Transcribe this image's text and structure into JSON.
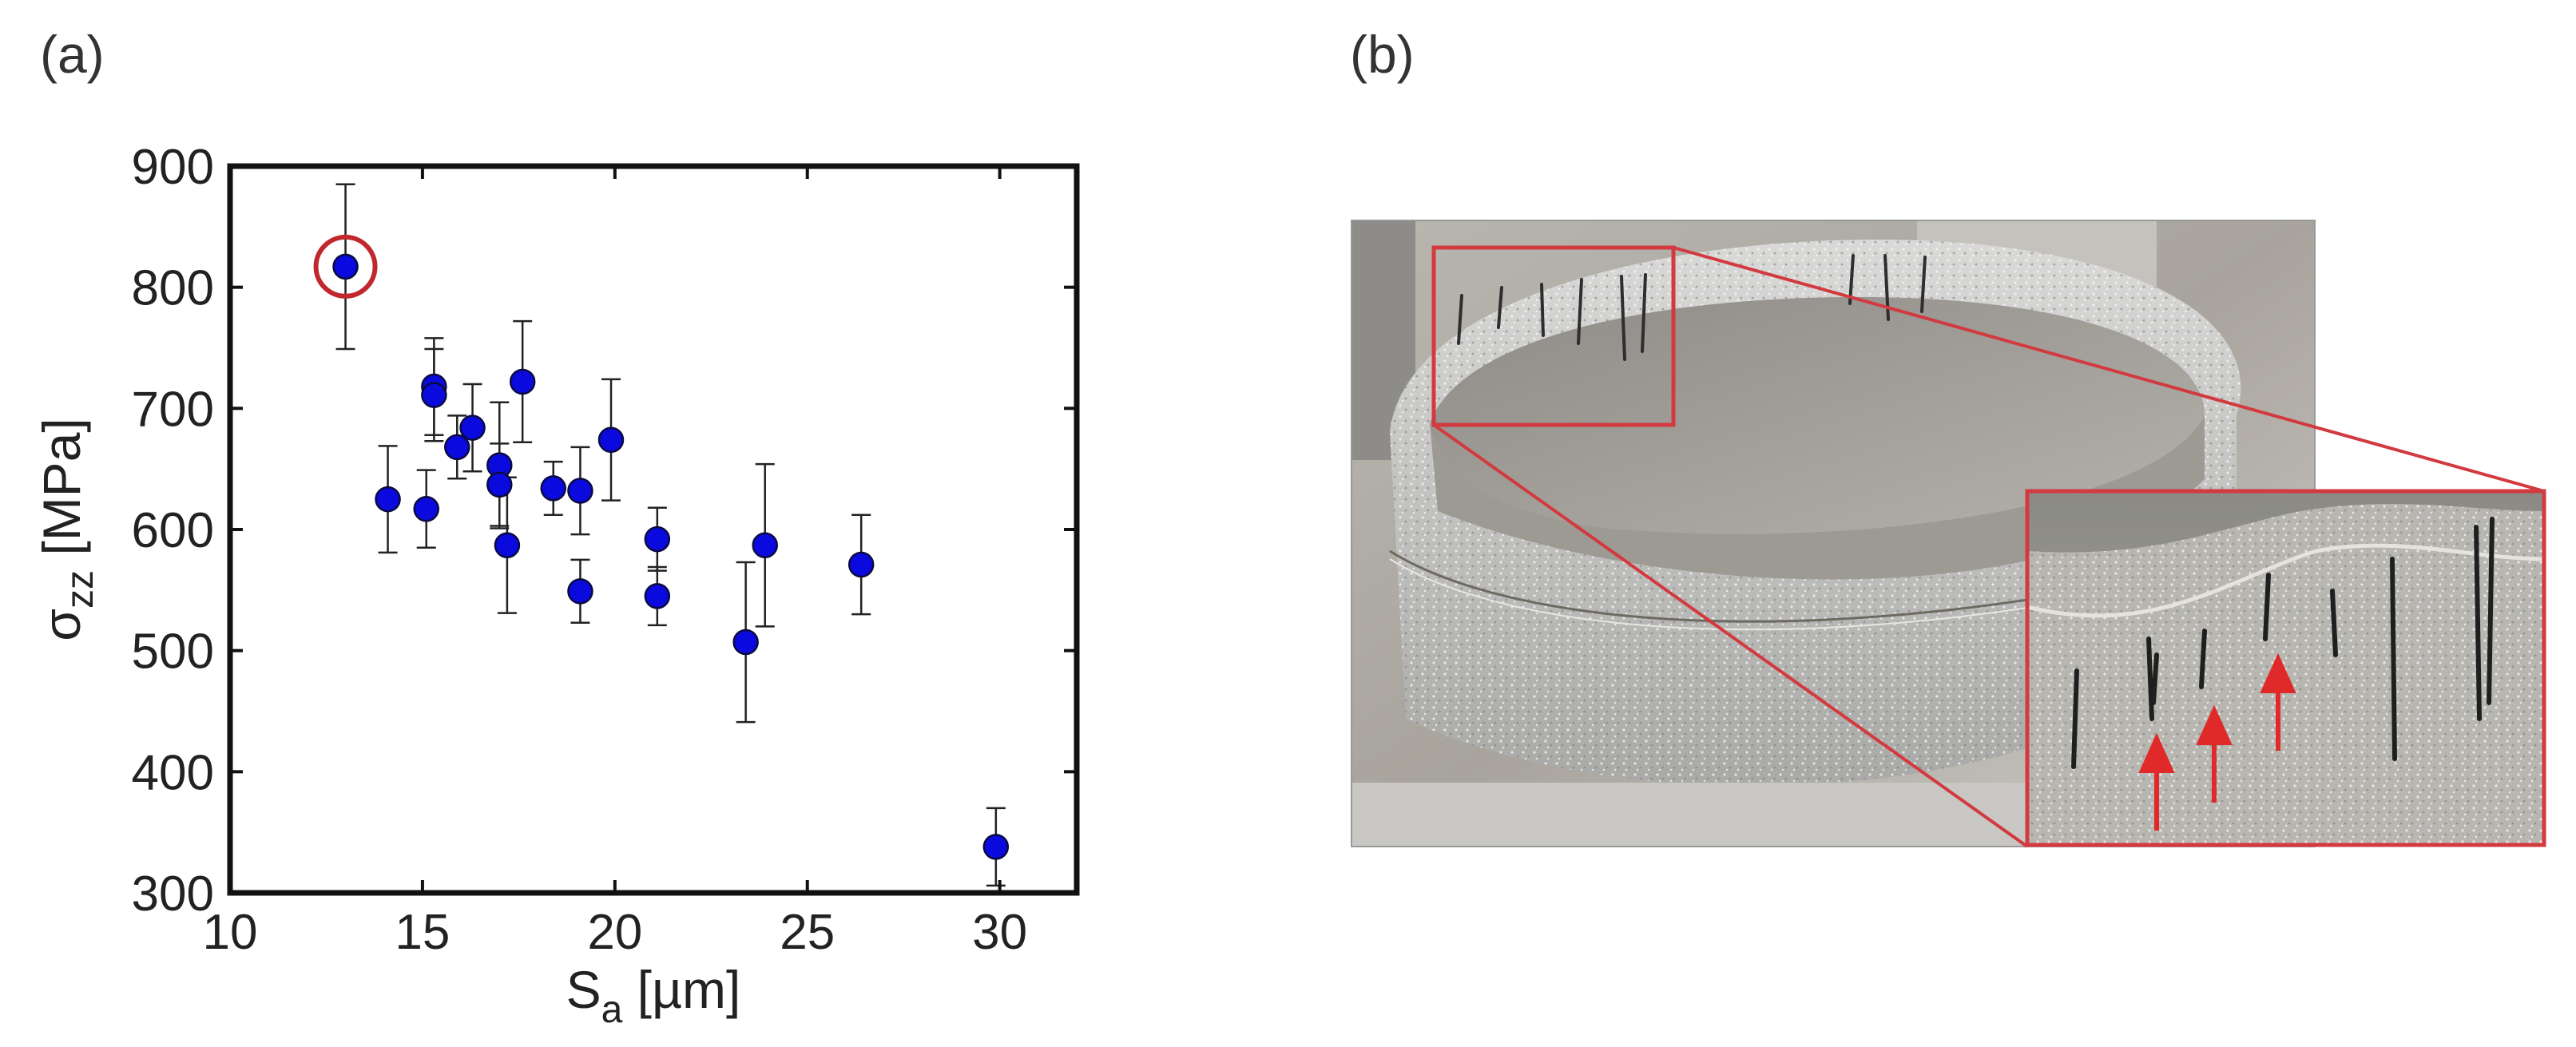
{
  "panels": {
    "a_label": "(a)",
    "b_label": "(b)"
  },
  "chart_data": {
    "type": "scatter",
    "xlabel_main": "S",
    "xlabel_sub": "a",
    "xlabel_unit": " [µm]",
    "ylabel_main": "σ",
    "ylabel_sub": "zz",
    "ylabel_unit": " [MPa]",
    "xlim": [
      10,
      32
    ],
    "ylim": [
      300,
      900
    ],
    "xticks": [
      10,
      15,
      20,
      25,
      30
    ],
    "yticks": [
      300,
      400,
      500,
      600,
      700,
      800,
      900
    ],
    "grid": false,
    "marker_color": "#0a0adf",
    "highlight_color": "#c0282d",
    "points": [
      {
        "x": 13.0,
        "y": 817,
        "err": 68,
        "highlight": true
      },
      {
        "x": 14.1,
        "y": 625,
        "err": 44
      },
      {
        "x": 15.1,
        "y": 617,
        "err": 32
      },
      {
        "x": 15.3,
        "y": 718,
        "err": 40
      },
      {
        "x": 15.3,
        "y": 711,
        "err": 38
      },
      {
        "x": 15.9,
        "y": 668,
        "err": 26
      },
      {
        "x": 16.3,
        "y": 684,
        "err": 36
      },
      {
        "x": 17.0,
        "y": 653,
        "err": 52
      },
      {
        "x": 17.0,
        "y": 637,
        "err": 34
      },
      {
        "x": 17.2,
        "y": 587,
        "err": 56
      },
      {
        "x": 17.6,
        "y": 722,
        "err": 50
      },
      {
        "x": 18.4,
        "y": 634,
        "err": 22
      },
      {
        "x": 19.1,
        "y": 632,
        "err": 36
      },
      {
        "x": 19.1,
        "y": 549,
        "err": 26
      },
      {
        "x": 19.9,
        "y": 674,
        "err": 50
      },
      {
        "x": 21.1,
        "y": 592,
        "err": 26
      },
      {
        "x": 21.1,
        "y": 545,
        "err": 24
      },
      {
        "x": 23.4,
        "y": 507,
        "err": 66
      },
      {
        "x": 23.9,
        "y": 587,
        "err": 67
      },
      {
        "x": 26.4,
        "y": 571,
        "err": 41
      },
      {
        "x": 29.9,
        "y": 338,
        "err": 32
      }
    ]
  },
  "photo": {
    "frame_color": "#d23a3f",
    "arrow_color": "#e02a2a"
  }
}
